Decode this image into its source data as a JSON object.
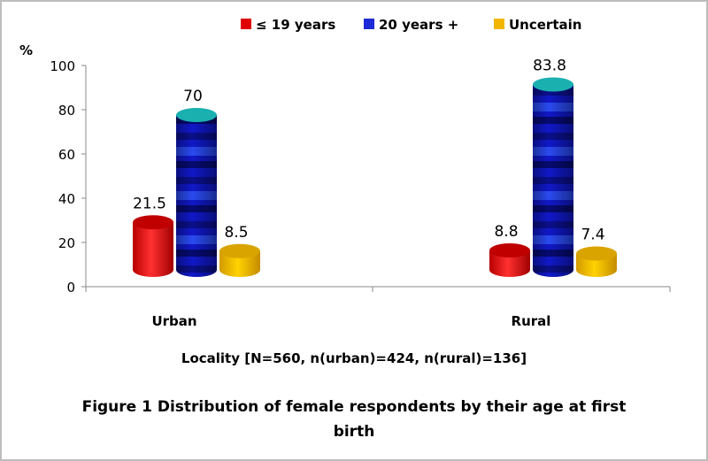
{
  "chart_data": {
    "type": "bar",
    "style": "3d-cylinder",
    "categories": [
      "Urban",
      "Rural"
    ],
    "series": [
      {
        "name": "≤ 19 years",
        "values": [
          21.5,
          8.8
        ],
        "color": "#e00000"
      },
      {
        "name": "20 years +",
        "values": [
          70,
          83.8
        ],
        "color": "#1d2bd6"
      },
      {
        "name": "Uncertain",
        "values": [
          8.5,
          7.4
        ],
        "color": "#f2b600"
      }
    ],
    "data_labels": [
      [
        "21.5",
        "8.8"
      ],
      [
        "70",
        "83.8"
      ],
      [
        "8.5",
        "7.4"
      ]
    ],
    "ylabel": "%",
    "ylim": [
      0,
      100
    ],
    "yticks": [
      "0",
      "20",
      "40",
      "60",
      "80",
      "100"
    ],
    "xlabel": "Locality [N=560, n(urban)=424, n(rural)=136]",
    "caption": "Figure 1 Distribution of female respondents by their age at first birth",
    "legend_position": "top",
    "grid": false,
    "top_colors": [
      "#c00000",
      "#1ab0b0",
      "#d9a400"
    ]
  }
}
